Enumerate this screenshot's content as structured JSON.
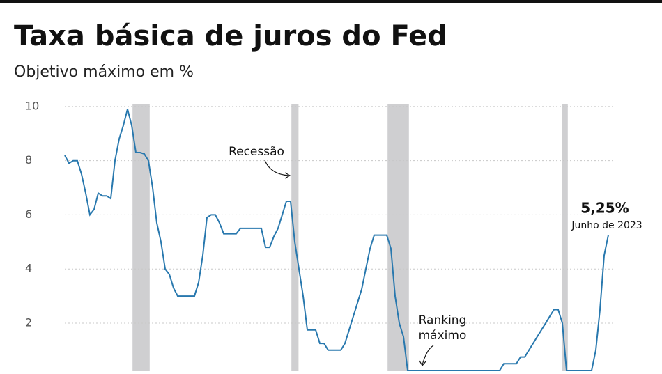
{
  "chart_data": {
    "type": "line",
    "title": "Taxa básica de juros do Fed",
    "subtitle": "Objetivo máximo em %",
    "color": "#2878ae",
    "recession_color": "#cfcfd1",
    "grid": true,
    "ylim": [
      0.25,
      10.1
    ],
    "yticks": [
      2,
      4,
      6,
      8,
      10
    ],
    "values": [
      8.2,
      7.9,
      8.0,
      8.0,
      7.5,
      6.8,
      6.0,
      6.2,
      6.8,
      6.7,
      6.7,
      6.6,
      8.0,
      8.8,
      9.3,
      9.9,
      9.3,
      8.3,
      8.3,
      8.25,
      8.0,
      7.0,
      5.7,
      5.0,
      4.0,
      3.8,
      3.3,
      3.0,
      3.0,
      3.0,
      3.0,
      3.0,
      3.5,
      4.5,
      5.9,
      6.0,
      6.0,
      5.7,
      5.3,
      5.3,
      5.3,
      5.3,
      5.5,
      5.5,
      5.5,
      5.5,
      5.5,
      5.5,
      4.8,
      4.8,
      5.2,
      5.5,
      6.0,
      6.5,
      6.5,
      5.0,
      4.0,
      3.0,
      1.75,
      1.75,
      1.75,
      1.25,
      1.25,
      1.0,
      1.0,
      1.0,
      1.0,
      1.25,
      1.75,
      2.25,
      2.75,
      3.25,
      4.0,
      4.75,
      5.25,
      5.25,
      5.25,
      5.25,
      4.75,
      3.0,
      2.0,
      1.5,
      0.25,
      0.25,
      0.25,
      0.25,
      0.25,
      0.25,
      0.25,
      0.25,
      0.25,
      0.25,
      0.25,
      0.25,
      0.25,
      0.25,
      0.25,
      0.25,
      0.25,
      0.25,
      0.25,
      0.25,
      0.25,
      0.25,
      0.25,
      0.5,
      0.5,
      0.5,
      0.5,
      0.75,
      0.75,
      1.0,
      1.25,
      1.5,
      1.75,
      2.0,
      2.25,
      2.5,
      2.5,
      2.0,
      0.25,
      0.25,
      0.25,
      0.25,
      0.25,
      0.25,
      0.25,
      1.0,
      2.5,
      4.5,
      5.25
    ],
    "recessions": [
      [
        16.2,
        20.3
      ],
      [
        54.2,
        55.9
      ],
      [
        77.2,
        82.3
      ],
      [
        119.0,
        120.3
      ]
    ],
    "annotations": {
      "recession": "Recessão",
      "lowest": [
        "Ranking",
        "máximo"
      ],
      "last_value": "5,25%",
      "last_date": "Junho de 2023"
    }
  }
}
